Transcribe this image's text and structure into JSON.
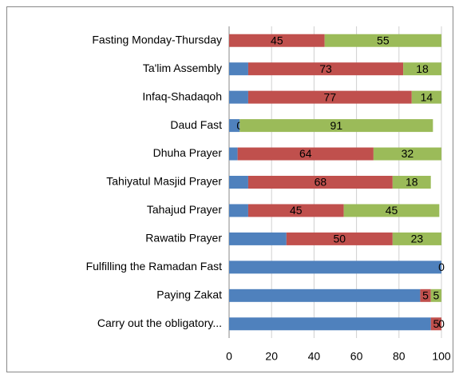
{
  "chart_data": {
    "type": "stacked-bar-horizontal",
    "categories": [
      "Fasting Monday-Thursday",
      "Ta'lim Assembly",
      "Infaq-Shadaqoh",
      "Daud Fast",
      "Dhuha Prayer",
      "Tahiyatul Masjid Prayer",
      "Tahajud Prayer",
      "Rawatib Prayer",
      "Fulfilling the Ramadan Fast",
      "Paying Zakat",
      "Carry out the obligatory..."
    ],
    "series": [
      {
        "color": "#4f81bd",
        "labels": false,
        "values": [
          0,
          9,
          9,
          5,
          4,
          9,
          9,
          27,
          100,
          90,
          95
        ]
      },
      {
        "color": "#c0504d",
        "labels": true,
        "values": [
          45,
          73,
          77,
          0,
          64,
          68,
          45,
          50,
          0,
          5,
          5
        ]
      },
      {
        "color": "#9bbb59",
        "labels": true,
        "values": [
          55,
          18,
          14,
          91,
          32,
          18,
          45,
          23,
          null,
          5,
          0
        ]
      }
    ],
    "xlim": [
      0,
      100
    ],
    "xticks": [
      0,
      20,
      40,
      60,
      80,
      100
    ],
    "grid": true
  }
}
